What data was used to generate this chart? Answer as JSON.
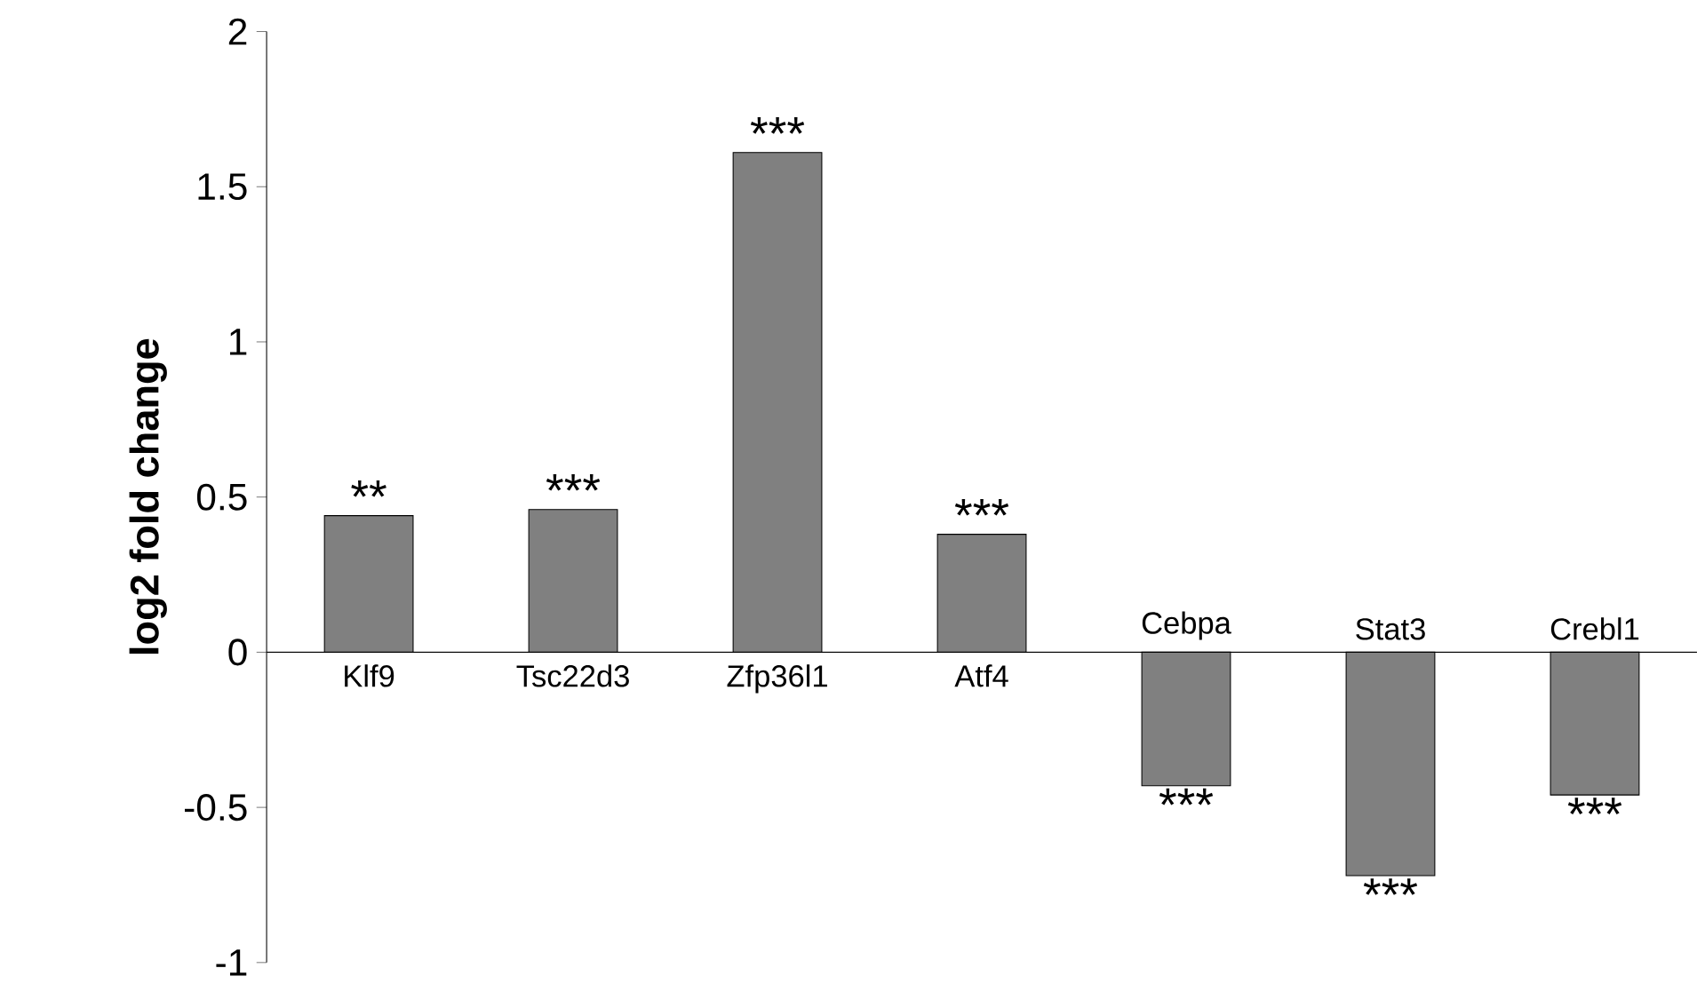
{
  "chart_data": {
    "type": "bar",
    "ylabel": "log2 fold change",
    "categories": [
      "Klf9",
      "Tsc22d3",
      "Zfp36l1",
      "Atf4",
      "Cebpa",
      "Stat3",
      "Crebl1"
    ],
    "values": [
      0.44,
      0.46,
      1.61,
      0.38,
      -0.43,
      -0.72,
      -0.46
    ],
    "color": "#808080",
    "ylim": [
      -1,
      2
    ],
    "yticks": [
      -1,
      -0.5,
      0,
      0.5,
      1,
      1.5,
      2
    ],
    "grid": false,
    "annotations": [
      {
        "text": "**",
        "x": "Klf9",
        "y": 0.44
      },
      {
        "text": "***",
        "x": "Tsc22d3",
        "y": 0.46
      },
      {
        "text": "***",
        "x": "Zfp36l1",
        "y": 1.61
      },
      {
        "text": "***",
        "x": "Atf4",
        "y": 0.38
      },
      {
        "text": "***",
        "x": "Cebpa",
        "y": -0.43
      },
      {
        "text": "***",
        "x": "Stat3",
        "y": -0.72
      },
      {
        "text": "***",
        "x": "Crebl1",
        "y": -0.46
      }
    ]
  }
}
